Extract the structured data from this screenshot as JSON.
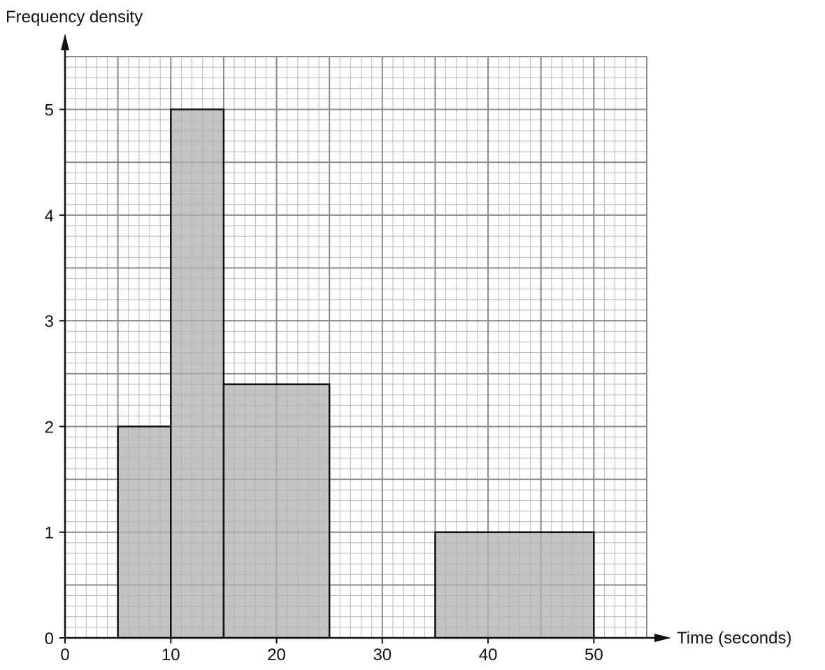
{
  "chart_data": {
    "type": "histogram",
    "title": "",
    "xlabel": "Time (seconds)",
    "ylabel": "Frequency density",
    "xlim": [
      0,
      55
    ],
    "ylim": [
      0,
      5.5
    ],
    "x_ticks": [
      0,
      10,
      20,
      30,
      40,
      50
    ],
    "x_tick_labels": [
      "0",
      "10",
      "20",
      "30",
      "40",
      "50"
    ],
    "y_ticks": [
      0,
      1,
      2,
      3,
      4,
      5
    ],
    "y_tick_labels": [
      "0",
      "1",
      "2",
      "3",
      "4",
      "5"
    ],
    "grid": true,
    "grid_minor_step_x": 1,
    "grid_minor_step_y": 0.1,
    "grid_major_step_x": 5,
    "grid_major_step_y": 0.5,
    "bars": [
      {
        "x_start": 5,
        "x_end": 10,
        "value": 2
      },
      {
        "x_start": 10,
        "x_end": 15,
        "value": 5
      },
      {
        "x_start": 15,
        "x_end": 25,
        "value": 2.4
      },
      {
        "x_start": 35,
        "x_end": 50,
        "value": 1
      }
    ],
    "colors": {
      "bar_fill": "#b2b2b4",
      "bar_stroke": "#111111",
      "grid_minor": "#b8b8b8",
      "grid_major": "#8a8a8a",
      "axis": "#111111"
    }
  }
}
